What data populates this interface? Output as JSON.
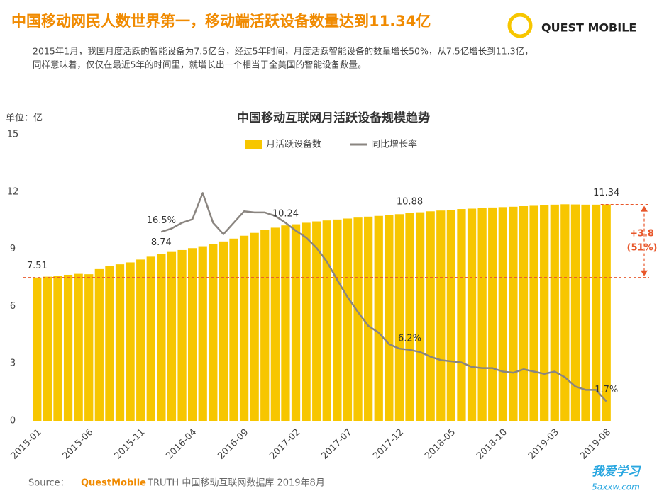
{
  "header": {
    "title": "中国移动网民人数世界第一，移动端活跃设备数量达到11.34亿",
    "subtitle_lines": [
      "2015年1月，我国月度活跃的智能设备为7.5亿台，经过5年时间，月度活跃智能设备的数量增长50%，从7.5亿增长到11.3亿，",
      "同样意味着，仅仅在最近5年的时间里，就增长出一个相当于全美国的智能设备数量。"
    ],
    "logo": "QUEST MOBILE"
  },
  "chart_data": {
    "type": "bar_line",
    "title": "中国移动互联网月活跃设备规模趋势",
    "y_unit": "单位：亿",
    "categories": [
      "2015-01",
      null,
      null,
      null,
      null,
      "2015-06",
      null,
      null,
      null,
      null,
      "2015-11",
      null,
      null,
      null,
      null,
      "2016-04",
      null,
      null,
      null,
      null,
      "2016-09",
      null,
      null,
      null,
      null,
      "2017-02",
      null,
      null,
      null,
      null,
      "2017-07",
      null,
      null,
      null,
      null,
      "2017-12",
      null,
      null,
      null,
      null,
      "2018-05",
      null,
      null,
      null,
      null,
      "2018-10",
      null,
      null,
      null,
      null,
      "2019-03",
      null,
      null,
      null,
      null,
      "2019-08"
    ],
    "series": [
      {
        "name": "月活跃设备数",
        "color": "#f7c600",
        "type": "bar",
        "values": [
          7.51,
          7.55,
          7.6,
          7.65,
          7.7,
          7.68,
          7.95,
          8.1,
          8.2,
          8.3,
          8.45,
          8.6,
          8.74,
          8.85,
          8.95,
          9.05,
          9.15,
          9.25,
          9.4,
          9.55,
          9.7,
          9.85,
          10.0,
          10.12,
          10.24,
          10.3,
          10.38,
          10.45,
          10.5,
          10.55,
          10.6,
          10.65,
          10.7,
          10.74,
          10.78,
          10.83,
          10.88,
          10.93,
          10.98,
          11.02,
          11.06,
          11.1,
          11.12,
          11.15,
          11.18,
          11.2,
          11.22,
          11.25,
          11.27,
          11.3,
          11.33,
          11.35,
          11.34,
          11.33,
          11.33,
          11.34
        ],
        "value_labels": [
          "7.51",
          null,
          null,
          null,
          null,
          null,
          null,
          null,
          null,
          null,
          null,
          null,
          "8.74",
          null,
          null,
          null,
          null,
          null,
          null,
          null,
          null,
          null,
          null,
          null,
          "10.24",
          null,
          null,
          null,
          null,
          null,
          null,
          null,
          null,
          null,
          null,
          null,
          "10.88",
          null,
          null,
          null,
          null,
          null,
          null,
          null,
          null,
          null,
          null,
          null,
          null,
          null,
          null,
          null,
          null,
          null,
          null,
          "11.34"
        ]
      },
      {
        "name": "同比增长率",
        "color": "#8a8580",
        "type": "line",
        "axis": "y2",
        "values": [
          null,
          null,
          null,
          null,
          null,
          null,
          null,
          null,
          null,
          null,
          null,
          null,
          16.5,
          16.8,
          17.3,
          17.6,
          19.9,
          17.3,
          16.3,
          17.3,
          18.3,
          18.2,
          18.2,
          17.9,
          17.3,
          16.6,
          16.0,
          15.1,
          13.9,
          12.3,
          10.8,
          9.5,
          8.3,
          7.7,
          6.7,
          6.3,
          6.2,
          6.0,
          5.6,
          5.3,
          5.2,
          5.1,
          4.7,
          4.6,
          4.6,
          4.3,
          4.2,
          4.5,
          4.3,
          4.1,
          4.3,
          3.8,
          3.0,
          2.7,
          2.7,
          1.7
        ],
        "value_labels": [
          null,
          null,
          null,
          null,
          null,
          null,
          null,
          null,
          null,
          null,
          null,
          null,
          "16.5%",
          null,
          null,
          null,
          null,
          null,
          null,
          null,
          null,
          null,
          null,
          null,
          null,
          null,
          null,
          null,
          null,
          null,
          null,
          null,
          null,
          null,
          null,
          null,
          "6.2%",
          null,
          null,
          null,
          null,
          null,
          null,
          null,
          null,
          null,
          null,
          null,
          null,
          null,
          null,
          null,
          null,
          null,
          null,
          "1.7%"
        ]
      }
    ],
    "ylim": [
      0,
      15
    ],
    "yticks": [
      0,
      3,
      6,
      9,
      12,
      15
    ],
    "y2lim": [
      0,
      25
    ],
    "grid": false,
    "annotations": [
      "+3.8",
      "(51%)"
    ]
  },
  "footer": {
    "source_label": "Source：",
    "source_brand": "QuestMobile",
    "source_text": "TRUTH 中国移动互联网数据库 2019年8月",
    "watermark": "我爱学习",
    "watermark_url": "5axxw.com"
  }
}
